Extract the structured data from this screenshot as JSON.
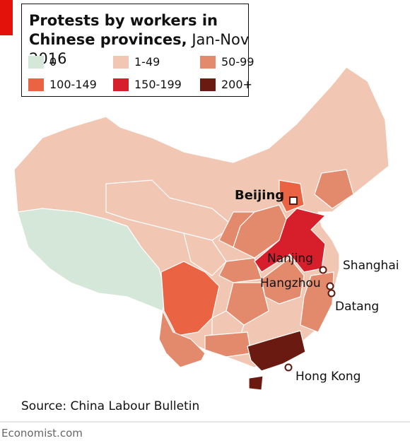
{
  "header": {
    "title": "Protests by workers in Chinese provinces,",
    "subtitle": "Jan-Nov 2016"
  },
  "legend": [
    {
      "label": "0",
      "color": "#d5e7d9"
    },
    {
      "label": "1-49",
      "color": "#f1c6b3"
    },
    {
      "label": "50-99",
      "color": "#e38a6d"
    },
    {
      "label": "100-149",
      "color": "#ea6443"
    },
    {
      "label": "150-199",
      "color": "#d61f2a"
    },
    {
      "label": "200+",
      "color": "#6b1a12"
    }
  ],
  "cities": [
    {
      "label": "Beijing"
    },
    {
      "label": "Nanjing"
    },
    {
      "label": "Shanghai"
    },
    {
      "label": "Hangzhou"
    },
    {
      "label": "Datang"
    },
    {
      "label": "Hong Kong"
    }
  ],
  "source": "Source: China Labour Bulletin",
  "footer": "Economist.com"
}
